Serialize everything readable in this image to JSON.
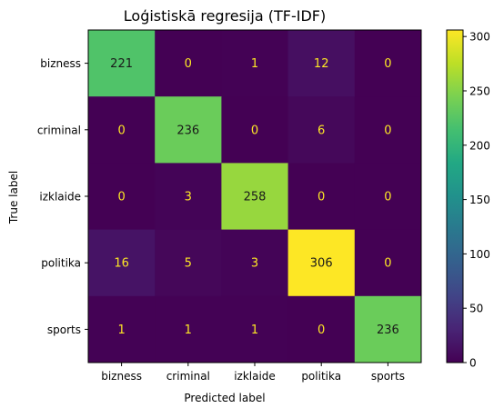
{
  "chart_data": {
    "type": "heatmap",
    "title": "Loģistiskā regresija (TF-IDF)",
    "xlabel": "Predicted label",
    "ylabel": "True label",
    "x_categories": [
      "bizness",
      "criminal",
      "izklaide",
      "politika",
      "sports"
    ],
    "y_categories": [
      "bizness",
      "criminal",
      "izklaide",
      "politika",
      "sports"
    ],
    "values": [
      [
        221,
        0,
        1,
        12,
        0
      ],
      [
        0,
        236,
        0,
        6,
        0
      ],
      [
        0,
        3,
        258,
        0,
        0
      ],
      [
        16,
        5,
        3,
        306,
        0
      ],
      [
        1,
        1,
        1,
        0,
        236
      ]
    ],
    "colormap": "viridis",
    "color_range": [
      0,
      306
    ],
    "colorbar_ticks": [
      0,
      50,
      100,
      150,
      200,
      250,
      300
    ],
    "text_color_dark_cells": "#fde725",
    "text_color_light_cells": "#1a1a1a",
    "grid": false
  }
}
